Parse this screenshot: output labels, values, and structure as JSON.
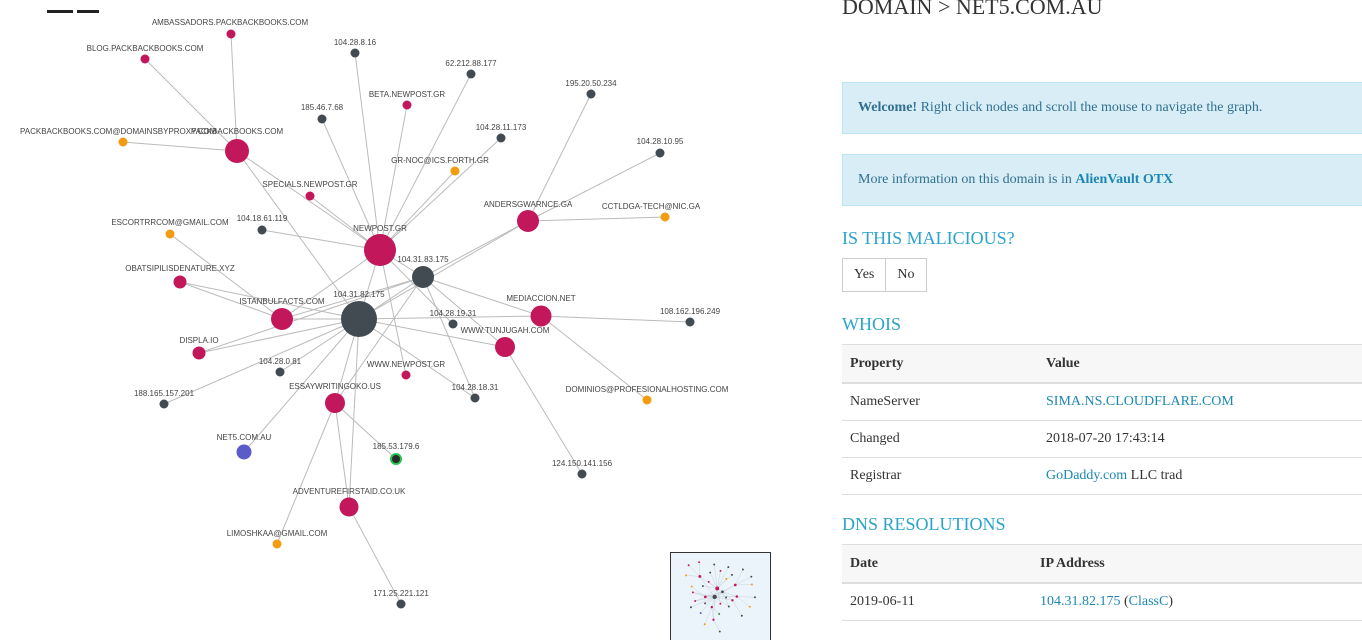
{
  "page": {
    "title": "DOMAIN > NET5.COM.AU",
    "welcome_strong": "Welcome!",
    "welcome_text": " Right click nodes and scroll the mouse to navigate the graph.",
    "info_text": "More information on this domain is in ",
    "info_link": "AlienVault OTX",
    "close_glyph": "×",
    "malicious_heading": "IS THIS MALICIOUS?",
    "yes_label": "Yes",
    "no_label": "No",
    "whois_heading": "WHOIS",
    "dns_heading": "DNS RESOLUTIONS"
  },
  "whois": {
    "col_property": "Property",
    "col_value": "Value",
    "rows": [
      {
        "property": "NameServer",
        "link": "SIMA.NS.CLOUDFLARE.COM",
        "suffix": ""
      },
      {
        "property": "Changed",
        "value": "2018-07-20 17:43:14"
      },
      {
        "property": "Registrar",
        "link": "GoDaddy.com",
        "suffix": " LLC trad"
      }
    ]
  },
  "dns": {
    "col_date": "Date",
    "col_ip": "IP Address",
    "rows": [
      {
        "date": "2019-06-11",
        "ip": "104.31.82.175",
        "open": " (",
        "class_link": "ClassC",
        "close": ")"
      }
    ]
  },
  "colors": {
    "domain": "#c2185b",
    "ip": "#424a52",
    "email": "#f39c12",
    "current": "#5c5cc8",
    "special": "#2e7d32"
  },
  "graph": {
    "nodes": [
      {
        "id": "ambassadors",
        "label": "AMBASSADORS.PACKBACKBOOKS.COM",
        "type": "domain"
      },
      {
        "id": "blog",
        "label": "BLOG.PACKBACKBOOKS.COM",
        "type": "domain"
      },
      {
        "id": "packemail",
        "label": "PACKBACKBOOKS.COM@DOMAINSBYPROXY.COM",
        "type": "email"
      },
      {
        "id": "packback",
        "label": "PACKBACKBOOKS.COM",
        "type": "domain"
      },
      {
        "id": "ip8_16",
        "label": "104.28.8.16",
        "type": "ip"
      },
      {
        "id": "ip62",
        "label": "62.212.88.177",
        "type": "ip"
      },
      {
        "id": "ip195",
        "label": "195.20.50.234",
        "type": "ip"
      },
      {
        "id": "beta",
        "label": "BETA.NEWPOST.GR",
        "type": "domain"
      },
      {
        "id": "ip185_46",
        "label": "185.46.7.68",
        "type": "ip"
      },
      {
        "id": "ip11_173",
        "label": "104.28.11.173",
        "type": "ip"
      },
      {
        "id": "ip10_95",
        "label": "104.28.10.95",
        "type": "ip"
      },
      {
        "id": "grnoc",
        "label": "GR-NOC@ICS.FORTH.GR",
        "type": "email"
      },
      {
        "id": "specials",
        "label": "SPECIALS.NEWPOST.GR",
        "type": "domain"
      },
      {
        "id": "andersg",
        "label": "ANDERSGWARNCE.GA",
        "type": "domain"
      },
      {
        "id": "cctld",
        "label": "CCTLDGA-TECH@NIC.GA",
        "type": "email"
      },
      {
        "id": "escort",
        "label": "ESCORTRRCOM@GMAIL.COM",
        "type": "email"
      },
      {
        "id": "ip18_61",
        "label": "104.18.61.119",
        "type": "ip"
      },
      {
        "id": "newpost",
        "label": "NEWPOST.GR",
        "type": "domain"
      },
      {
        "id": "ip31_83",
        "label": "104.31.83.175",
        "type": "ip"
      },
      {
        "id": "obats",
        "label": "OBATSIPILISDENATURE.XYZ",
        "type": "domain"
      },
      {
        "id": "istanbul",
        "label": "ISTANBULFACTS.COM",
        "type": "domain"
      },
      {
        "id": "ip31_82",
        "label": "104.31.82.175",
        "type": "ip"
      },
      {
        "id": "mediaccion",
        "label": "MEDIACCION.NET",
        "type": "domain"
      },
      {
        "id": "ip19_31",
        "label": "104.28.19.31",
        "type": "ip"
      },
      {
        "id": "ip108",
        "label": "108.162.196.249",
        "type": "ip"
      },
      {
        "id": "tunjugah",
        "label": "WWW.TUNJUGAH.COM",
        "type": "domain"
      },
      {
        "id": "displa",
        "label": "DISPLA.IO",
        "type": "domain"
      },
      {
        "id": "ip0_81",
        "label": "104.28.0.81",
        "type": "ip"
      },
      {
        "id": "wwwnewpost",
        "label": "WWW.NEWPOST.GR",
        "type": "domain"
      },
      {
        "id": "essay",
        "label": "ESSAYWRITINGOKO.US",
        "type": "domain"
      },
      {
        "id": "ip18_31",
        "label": "104.28.18.31",
        "type": "ip"
      },
      {
        "id": "dominios",
        "label": "DOMINIOS@PROFESIONALHOSTING.COM",
        "type": "email"
      },
      {
        "id": "ip188",
        "label": "188.165.157.201",
        "type": "ip"
      },
      {
        "id": "net5",
        "label": "NET5.COM.AU",
        "type": "current"
      },
      {
        "id": "ip185_53",
        "label": "185.53.179.6",
        "type": "special"
      },
      {
        "id": "ip124",
        "label": "124.150.141.156",
        "type": "ip"
      },
      {
        "id": "adventure",
        "label": "ADVENTUREFIRSTAID.CO.UK",
        "type": "domain"
      },
      {
        "id": "limoshka",
        "label": "LIMOSHKAA@GMAIL.COM",
        "type": "email"
      },
      {
        "id": "ip171",
        "label": "171.25.221.121",
        "type": "ip"
      }
    ]
  }
}
